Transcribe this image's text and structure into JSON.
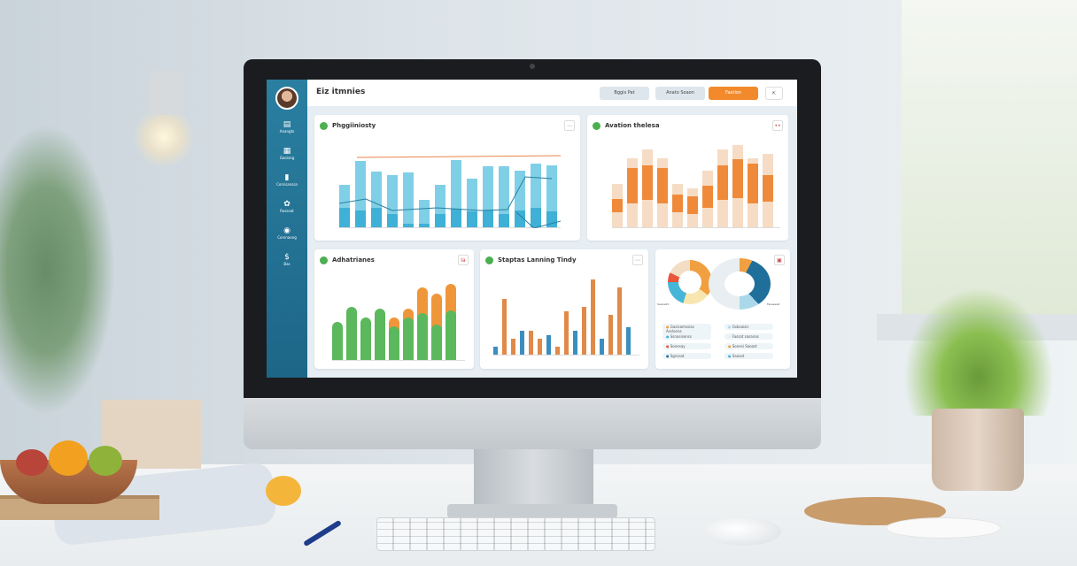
{
  "dashboard": {
    "title": "Eiz itmnies",
    "buttons": [
      "Bggis Pat",
      "Anato Soaon",
      "Faation"
    ],
    "sidebar": [
      {
        "icon": "chart-icon",
        "label": "Anangts"
      },
      {
        "icon": "document-icon",
        "label": "Gaoisng"
      },
      {
        "icon": "bookmark-icon",
        "label": "Corsisanssa"
      },
      {
        "icon": "settings-icon",
        "label": "Rosseat"
      },
      {
        "icon": "globe-icon",
        "label": "Corsnaong"
      },
      {
        "icon": "dollar-icon",
        "label": "Bas"
      }
    ],
    "cards": {
      "card1": {
        "title": "Phggiiniosty",
        "bars": [
          0.55,
          0.85,
          0.72,
          0.67,
          0.7,
          0.35,
          0.55,
          0.86,
          0.62,
          0.78,
          0.78,
          0.73,
          0.82,
          0.8
        ],
        "inner": [
          0.25,
          0.22,
          0.25,
          0.17,
          0.05,
          0.04,
          0.17,
          0.24,
          0.2,
          0.22,
          0.17,
          0.22,
          0.25,
          0.2
        ]
      },
      "card2": {
        "title": "Avation thelesa",
        "outer": [
          0.5,
          0.8,
          0.9,
          0.8,
          0.5,
          0.45,
          0.65,
          0.9,
          0.95,
          0.8,
          0.85
        ],
        "orange": [
          0.15,
          0.4,
          0.4,
          0.4,
          0.2,
          0.2,
          0.25,
          0.4,
          0.45,
          0.45,
          0.3
        ]
      },
      "card3": {
        "title": "Adhatrianes",
        "green": [
          0.45,
          0.62,
          0.5,
          0.6,
          0.4,
          0.5,
          0.55,
          0.42,
          0.58
        ],
        "orange": [
          0.0,
          0.55,
          0.45,
          0.5,
          0.5,
          0.6,
          0.85,
          0.78,
          0.9
        ]
      },
      "card4": {
        "title": "Staptas Lanning Tindy",
        "bars": [
          0.1,
          0.7,
          0.2,
          0.3,
          0.3,
          0.2,
          0.25,
          0.1,
          0.55,
          0.3,
          0.6,
          0.95,
          0.2,
          0.5,
          0.85,
          0.35
        ]
      },
      "card5": {
        "legend": [
          "Gasisamssisa Asslsona",
          "Ssnasisenss",
          "Sonesay",
          "Sgnssat",
          "Gsbsaisis",
          "Fassat sasanas",
          "Sonesi Saoast",
          "Saasat"
        ],
        "donut_left_label": "Sasoastt",
        "donut_right_label": "Fasasasst",
        "colors": [
          "#f0a040",
          "#46b6d8",
          "#e8553a",
          "#1f6f9a",
          "#a9d8ea",
          "#e8eef1"
        ]
      }
    }
  }
}
